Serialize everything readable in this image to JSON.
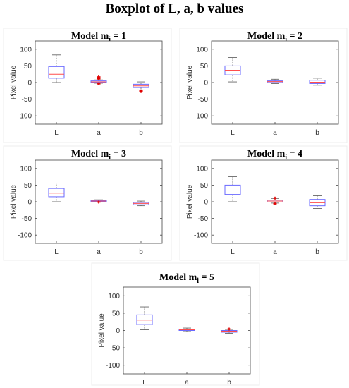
{
  "title": "Boxplot of L, a, b values",
  "chart_data": [
    {
      "type": "box",
      "title_main": "Model m",
      "title_sub": "i",
      "title_rest": " = 1",
      "ylabel": "Pixel value",
      "ylim": [
        -125,
        125
      ],
      "yticks": [
        -100,
        -50,
        0,
        50,
        100
      ],
      "categories": [
        "L",
        "a",
        "b"
      ],
      "boxes": [
        {
          "min": 0,
          "q1": 13,
          "median": 25,
          "q3": 48,
          "max": 83,
          "outliers": []
        },
        {
          "min": -2,
          "q1": 0,
          "median": 2,
          "q3": 5,
          "max": 8,
          "outliers": [
            11,
            14,
            17,
            -4
          ]
        },
        {
          "min": -22,
          "q1": -15,
          "median": -10,
          "q3": -5,
          "max": 2,
          "outliers": [
            -25,
            -27
          ]
        }
      ]
    },
    {
      "type": "box",
      "title_main": "Model m",
      "title_sub": "i",
      "title_rest": " = 2",
      "ylabel": "Pixel value",
      "ylim": [
        -125,
        125
      ],
      "yticks": [
        -100,
        -50,
        0,
        50,
        100
      ],
      "categories": [
        "L",
        "a",
        "b"
      ],
      "boxes": [
        {
          "min": 2,
          "q1": 23,
          "median": 37,
          "q3": 50,
          "max": 75,
          "outliers": []
        },
        {
          "min": -3,
          "q1": 0,
          "median": 3,
          "q3": 5,
          "max": 10,
          "outliers": []
        },
        {
          "min": -8,
          "q1": -3,
          "median": 1,
          "q3": 7,
          "max": 13,
          "outliers": []
        }
      ]
    },
    {
      "type": "box",
      "title_main": "Model m",
      "title_sub": "i",
      "title_rest": " = 3",
      "ylabel": "Pixel value",
      "ylim": [
        -125,
        125
      ],
      "yticks": [
        -100,
        -50,
        0,
        50,
        100
      ],
      "categories": [
        "L",
        "a",
        "b"
      ],
      "boxes": [
        {
          "min": 0,
          "q1": 15,
          "median": 26,
          "q3": 40,
          "max": 56,
          "outliers": []
        },
        {
          "min": -1,
          "q1": 1,
          "median": 2,
          "q3": 4,
          "max": 6,
          "outliers": [
            -1
          ]
        },
        {
          "min": -12,
          "q1": -9,
          "median": -5,
          "q3": -2,
          "max": 2,
          "outliers": []
        }
      ]
    },
    {
      "type": "box",
      "title_main": "Model m",
      "title_sub": "i",
      "title_rest": " = 4",
      "ylabel": "Pixel value",
      "ylim": [
        -125,
        125
      ],
      "yticks": [
        -100,
        -50,
        0,
        50,
        100
      ],
      "categories": [
        "L",
        "a",
        "b"
      ],
      "boxes": [
        {
          "min": 0,
          "q1": 22,
          "median": 35,
          "q3": 50,
          "max": 75,
          "outliers": []
        },
        {
          "min": -4,
          "q1": -1,
          "median": 2,
          "q3": 5,
          "max": 10,
          "outliers": [
            -6,
            11
          ]
        },
        {
          "min": -20,
          "q1": -12,
          "median": -3,
          "q3": 7,
          "max": 18,
          "outliers": []
        }
      ]
    },
    {
      "type": "box",
      "title_main": "Model m",
      "title_sub": "i",
      "title_rest": " = 5",
      "ylabel": "Pixel value",
      "ylim": [
        -125,
        125
      ],
      "yticks": [
        -100,
        -50,
        0,
        50,
        100
      ],
      "categories": [
        "L",
        "a",
        "b"
      ],
      "boxes": [
        {
          "min": 2,
          "q1": 17,
          "median": 30,
          "q3": 45,
          "max": 68,
          "outliers": []
        },
        {
          "min": -3,
          "q1": 0,
          "median": 2,
          "q3": 4,
          "max": 7,
          "outliers": []
        },
        {
          "min": -8,
          "q1": -5,
          "median": -2,
          "q3": 0,
          "max": 3,
          "outliers": [
            4
          ]
        }
      ]
    }
  ]
}
